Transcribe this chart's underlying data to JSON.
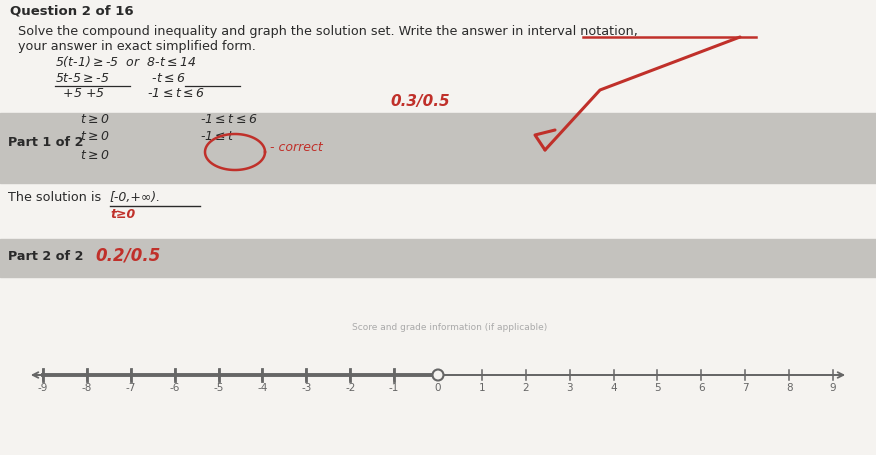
{
  "white_bg": "#f5f3f0",
  "gray_band1_color": "#c4c2be",
  "gray_band2_color": "#c4c2be",
  "red_color": "#c0302a",
  "dark_text": "#2a2a2a",
  "mid_text": "#555555",
  "number_line_color": "#666666",
  "header": "Question 2 of 16",
  "instr1": "Solve the compound inequality and graph the solution set. Write the answer in interval notation,",
  "instr2": "your answer in exact simplified form.",
  "part1_label": "Part 1 of 2",
  "solution_label": "The solution is",
  "solution_val": "[-0,+∞).",
  "solution_sub": "t≥0",
  "part2_label": "Part 2 of 2",
  "part2_val": "0.2/0.5",
  "nl_ticks": [
    -9,
    -8,
    -7,
    -6,
    -5,
    -4,
    -3,
    -2,
    -1,
    0,
    1,
    2,
    3,
    4,
    5,
    6,
    7,
    8,
    9
  ],
  "open_circle_at": 0,
  "fig_w": 8.76,
  "fig_h": 4.56,
  "dpi": 100
}
